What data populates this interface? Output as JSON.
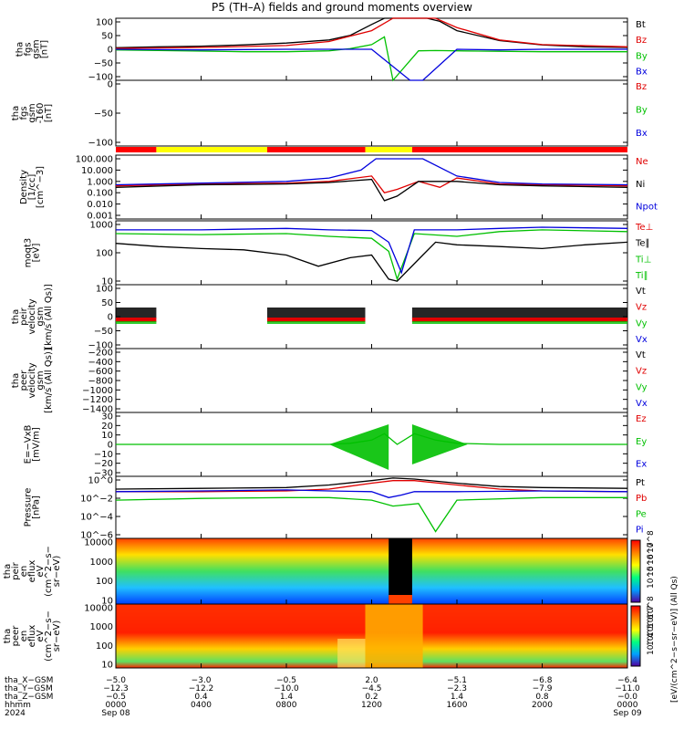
{
  "title": "P5 (TH–A) fields and ground moments overview",
  "colors": {
    "black": "#000000",
    "red": "#e00000",
    "green": "#00c000",
    "blue": "#0000dd"
  },
  "panels": [
    {
      "id": "fgs-gsm",
      "ylabel": [
        "tha",
        "fgs",
        "gsm",
        "[nT]"
      ],
      "ticks": [
        "100",
        "50",
        "0",
        "−50",
        "−100"
      ],
      "legend": [
        [
          "Bt",
          "black"
        ],
        [
          "Bz",
          "red"
        ],
        [
          "By",
          "green"
        ],
        [
          "Bx",
          "blue"
        ]
      ]
    },
    {
      "id": "fgs-gsm-fixed",
      "ylabel": [
        "tha",
        "fgs",
        "gsm",
        "-160",
        "[nT]"
      ],
      "ticks": [
        "0",
        "−50",
        "−100"
      ],
      "legend": [
        [
          "Bz",
          "red"
        ],
        [
          "By",
          "green"
        ],
        [
          "Bx",
          "blue"
        ]
      ]
    },
    {
      "id": "density",
      "ylabel": [
        "Density",
        "[1/cc]",
        "[cm^−3]"
      ],
      "ticks": [
        "100.000",
        "10.000",
        "1.000",
        "0.100",
        "0.010",
        "0.001"
      ],
      "legend": [
        [
          "Ne",
          "red"
        ],
        [
          "Ni",
          "black"
        ],
        [
          "Npot",
          "blue"
        ]
      ]
    },
    {
      "id": "temperature",
      "ylabel": [
        "moqt3",
        "[eV]"
      ],
      "ticks": [
        "1000",
        "100",
        "10"
      ],
      "legend": [
        [
          "Te⊥",
          "red"
        ],
        [
          "Te∥",
          "black"
        ],
        [
          "Ti⊥",
          "green"
        ],
        [
          "Ti∥",
          "green"
        ]
      ]
    },
    {
      "id": "peir-velocity",
      "ylabel": [
        "tha",
        "peir",
        "velocity",
        "gsm",
        "[km/s (All Qs)]"
      ],
      "ticks": [
        "100",
        "50",
        "0",
        "−50",
        "−100"
      ],
      "legend": [
        [
          "Vt",
          "black"
        ],
        [
          "Vz",
          "red"
        ],
        [
          "Vy",
          "green"
        ],
        [
          "Vx",
          "blue"
        ]
      ]
    },
    {
      "id": "peer-velocity",
      "ylabel": [
        "tha",
        "peer",
        "velocity",
        "gsm",
        "[km/s (All Qs)]"
      ],
      "ticks": [
        "−200",
        "−400",
        "−600",
        "−800",
        "−1000",
        "−1200",
        "−1400"
      ],
      "legend": [
        [
          "Vt",
          "black"
        ],
        [
          "Vz",
          "red"
        ],
        [
          "Vy",
          "green"
        ],
        [
          "Vx",
          "blue"
        ]
      ]
    },
    {
      "id": "efield",
      "ylabel": [
        "E=−VxB",
        "[mV/m]"
      ],
      "ticks": [
        "30",
        "20",
        "10",
        "0",
        "−10",
        "−20",
        "−30"
      ],
      "legend": [
        [
          "Ez",
          "red"
        ],
        [
          "Ey",
          "green"
        ],
        [
          "Ex",
          "blue"
        ]
      ]
    },
    {
      "id": "pressure",
      "ylabel": [
        "Pressure",
        "[nPa]"
      ],
      "ticks": [
        "10^0",
        "10^−2",
        "10^−4",
        "10^−6"
      ],
      "legend": [
        [
          "Pt",
          "black"
        ],
        [
          "Pb",
          "red"
        ],
        [
          "Pe",
          "green"
        ],
        [
          "Pi",
          "blue"
        ]
      ]
    },
    {
      "id": "peir-eflux",
      "ylabel": [
        "tha",
        "peir",
        "en",
        "eflux",
        "eV",
        "(cm^2−s−",
        "sr−eV)"
      ],
      "ticks": [
        "10000",
        "1000",
        "100",
        "10"
      ]
    },
    {
      "id": "peer-eflux",
      "ylabel": [
        "tha",
        "peer",
        "en",
        "eflux",
        "eV",
        "(cm^2−s−",
        "sr−eV)"
      ],
      "ticks": [
        "10000",
        "1000",
        "100",
        "10"
      ]
    }
  ],
  "colorbar": {
    "label": "[eV/(cm^2−s−sr−eV)] (All Qs)",
    "ticks_top": [
      "10^8",
      "10^7",
      "10^6",
      "10^5"
    ],
    "ticks_bottom": [
      "10^8",
      "10^7",
      "10^6",
      "10^5",
      "10^4"
    ]
  },
  "xaxis": {
    "row_labels": [
      "tha_X−GSM",
      "tha_Y−GSM",
      "tha_Z−GSM",
      "hhmm",
      "2024"
    ],
    "columns": [
      [
        "−5.0",
        "−12.3",
        "−0.5",
        "0000",
        "Sep 08"
      ],
      [
        "−3.0",
        "−12.2",
        "0.4",
        "0400",
        ""
      ],
      [
        "−0.5",
        "−10.0",
        "1.4",
        "0800",
        ""
      ],
      [
        "2.0",
        "−4.5",
        "0.2",
        "1200",
        ""
      ],
      [
        "−5.1",
        "−2.3",
        "1.4",
        "1600",
        ""
      ],
      [
        "−6.8",
        "−7.9",
        "0.8",
        "2000",
        ""
      ],
      [
        "−6.4",
        "−11.0",
        "−0.0",
        "0000",
        "Sep 09"
      ]
    ]
  },
  "chart_data": {
    "type": "line",
    "x_unit": "hours since 2024-09-08 00:00 UT",
    "xlim": [
      0,
      24
    ],
    "bar_status": [
      {
        "from": 0,
        "to": 1.9,
        "color": "red"
      },
      {
        "from": 1.9,
        "to": 7.1,
        "color": "yellow"
      },
      {
        "from": 7.1,
        "to": 11.7,
        "color": "red"
      },
      {
        "from": 11.7,
        "to": 13.9,
        "color": "yellow"
      },
      {
        "from": 13.9,
        "to": 24,
        "color": "red"
      }
    ],
    "series": [
      {
        "panel": "fgs-gsm",
        "name": "Bt",
        "x": [
          0,
          2,
          4,
          6,
          8,
          10,
          11,
          12,
          12.6,
          13.2,
          13.9,
          14.6,
          15.2,
          16,
          18,
          20,
          22,
          24
        ],
        "y": [
          5,
          8,
          10,
          14,
          20,
          30,
          45,
          80,
          100,
          100,
          100,
          100,
          90,
          60,
          28,
          14,
          8,
          6
        ]
      },
      {
        "panel": "fgs-gsm",
        "name": "Bz",
        "x": [
          0,
          4,
          8,
          10,
          12,
          13,
          14,
          15,
          16,
          18,
          20,
          24
        ],
        "y": [
          3,
          6,
          12,
          25,
          60,
          100,
          100,
          100,
          70,
          30,
          15,
          8
        ]
      },
      {
        "panel": "fgs-gsm",
        "name": "By",
        "x": [
          0,
          2,
          4,
          6,
          8,
          10,
          11,
          12,
          12.6,
          13.0,
          14.2,
          15,
          17,
          20,
          24
        ],
        "y": [
          -2,
          -4,
          -6,
          -8,
          -8,
          -5,
          2,
          15,
          40,
          -100,
          -5,
          -4,
          -6,
          -8,
          -8
        ]
      },
      {
        "panel": "fgs-gsm",
        "name": "Bx",
        "x": [
          0,
          4,
          8,
          12,
          13.8,
          14.4,
          16,
          18,
          20,
          24
        ],
        "y": [
          0,
          -2,
          0,
          0,
          -100,
          -100,
          0,
          -2,
          0,
          0
        ]
      },
      {
        "panel": "density",
        "name": "Ne",
        "x": [
          0,
          4,
          8,
          10,
          12,
          12.6,
          13.2,
          14.2,
          15.2,
          16,
          18,
          20,
          24
        ],
        "y": [
          0.4,
          0.6,
          0.7,
          1,
          3,
          0.1,
          0.2,
          1,
          0.3,
          2,
          0.6,
          0.5,
          0.4
        ]
      },
      {
        "panel": "density",
        "name": "Ni",
        "x": [
          0,
          4,
          8,
          10,
          12,
          12.6,
          13.2,
          14.2,
          16,
          18,
          20,
          24
        ],
        "y": [
          0.3,
          0.5,
          0.6,
          0.8,
          1.5,
          0.02,
          0.05,
          1,
          1,
          0.5,
          0.4,
          0.3
        ]
      },
      {
        "panel": "density",
        "name": "Npot",
        "x": [
          0,
          4,
          8,
          10,
          11.5,
          12.2,
          14.4,
          16,
          18,
          20,
          24
        ],
        "y": [
          0.5,
          0.7,
          1,
          2,
          10,
          100,
          100,
          3,
          0.8,
          0.6,
          0.5
        ]
      },
      {
        "panel": "temperature",
        "name": "Te∥",
        "x": [
          0,
          2,
          4,
          6,
          8,
          9.5,
          11,
          12,
          12.8,
          13.2,
          14.4,
          15,
          16,
          18,
          20,
          22,
          24
        ],
        "y": [
          700,
          500,
          400,
          350,
          200,
          60,
          150,
          200,
          15,
          12,
          200,
          800,
          600,
          500,
          400,
          600,
          800
        ]
      },
      {
        "panel": "temperature",
        "name": "Ti∥",
        "x": [
          0,
          4,
          8,
          10,
          12,
          12.8,
          13.2,
          14,
          16,
          18,
          20,
          24
        ],
        "y": [
          2000,
          1800,
          2000,
          1500,
          1200,
          300,
          15,
          2000,
          1500,
          2500,
          3000,
          2500
        ]
      },
      {
        "panel": "temperature",
        "name": "Ti⊥",
        "x": [
          0,
          4,
          8,
          10,
          12,
          12.8,
          13.4,
          14,
          16,
          18,
          20,
          24
        ],
        "y": [
          3000,
          3000,
          3500,
          3000,
          2800,
          800,
          30,
          3000,
          3000,
          3500,
          4000,
          3500
        ]
      },
      {
        "panel": "efield",
        "name": "Ey",
        "x": [
          0,
          4,
          8,
          10,
          11,
          12,
          12.6,
          13.2,
          14,
          15,
          16,
          18,
          20,
          24
        ],
        "y": [
          0,
          0,
          0,
          0,
          1,
          4,
          10,
          0,
          10,
          4,
          1,
          0,
          0,
          0
        ]
      },
      {
        "panel": "pressure",
        "name": "Pt",
        "x": [
          0,
          4,
          8,
          10,
          12,
          13,
          14,
          16,
          18,
          20,
          24
        ],
        "y": [
          0.1,
          0.12,
          0.15,
          0.3,
          1,
          2,
          1.5,
          0.5,
          0.2,
          0.15,
          0.12
        ]
      },
      {
        "panel": "pressure",
        "name": "Pb",
        "x": [
          0,
          4,
          8,
          10,
          12,
          13,
          14,
          16,
          18,
          20,
          24
        ],
        "y": [
          0.05,
          0.05,
          0.06,
          0.1,
          0.5,
          1,
          1,
          0.3,
          0.1,
          0.06,
          0.05
        ]
      },
      {
        "panel": "pressure",
        "name": "Pe",
        "x": [
          0,
          4,
          8,
          10,
          12,
          13,
          14.2,
          15,
          16,
          20,
          24
        ],
        "y": [
          0.005,
          0.008,
          0.01,
          0.01,
          0.005,
          0.001,
          0.002,
          1e-06,
          0.005,
          0.01,
          0.01
        ]
      },
      {
        "panel": "pressure",
        "name": "Pi",
        "x": [
          0,
          4,
          8,
          10,
          12,
          12.8,
          13.4,
          14,
          16,
          20,
          24
        ],
        "y": [
          0.05,
          0.06,
          0.08,
          0.06,
          0.05,
          0.01,
          0.02,
          0.05,
          0.05,
          0.06,
          0.05
        ]
      }
    ]
  }
}
